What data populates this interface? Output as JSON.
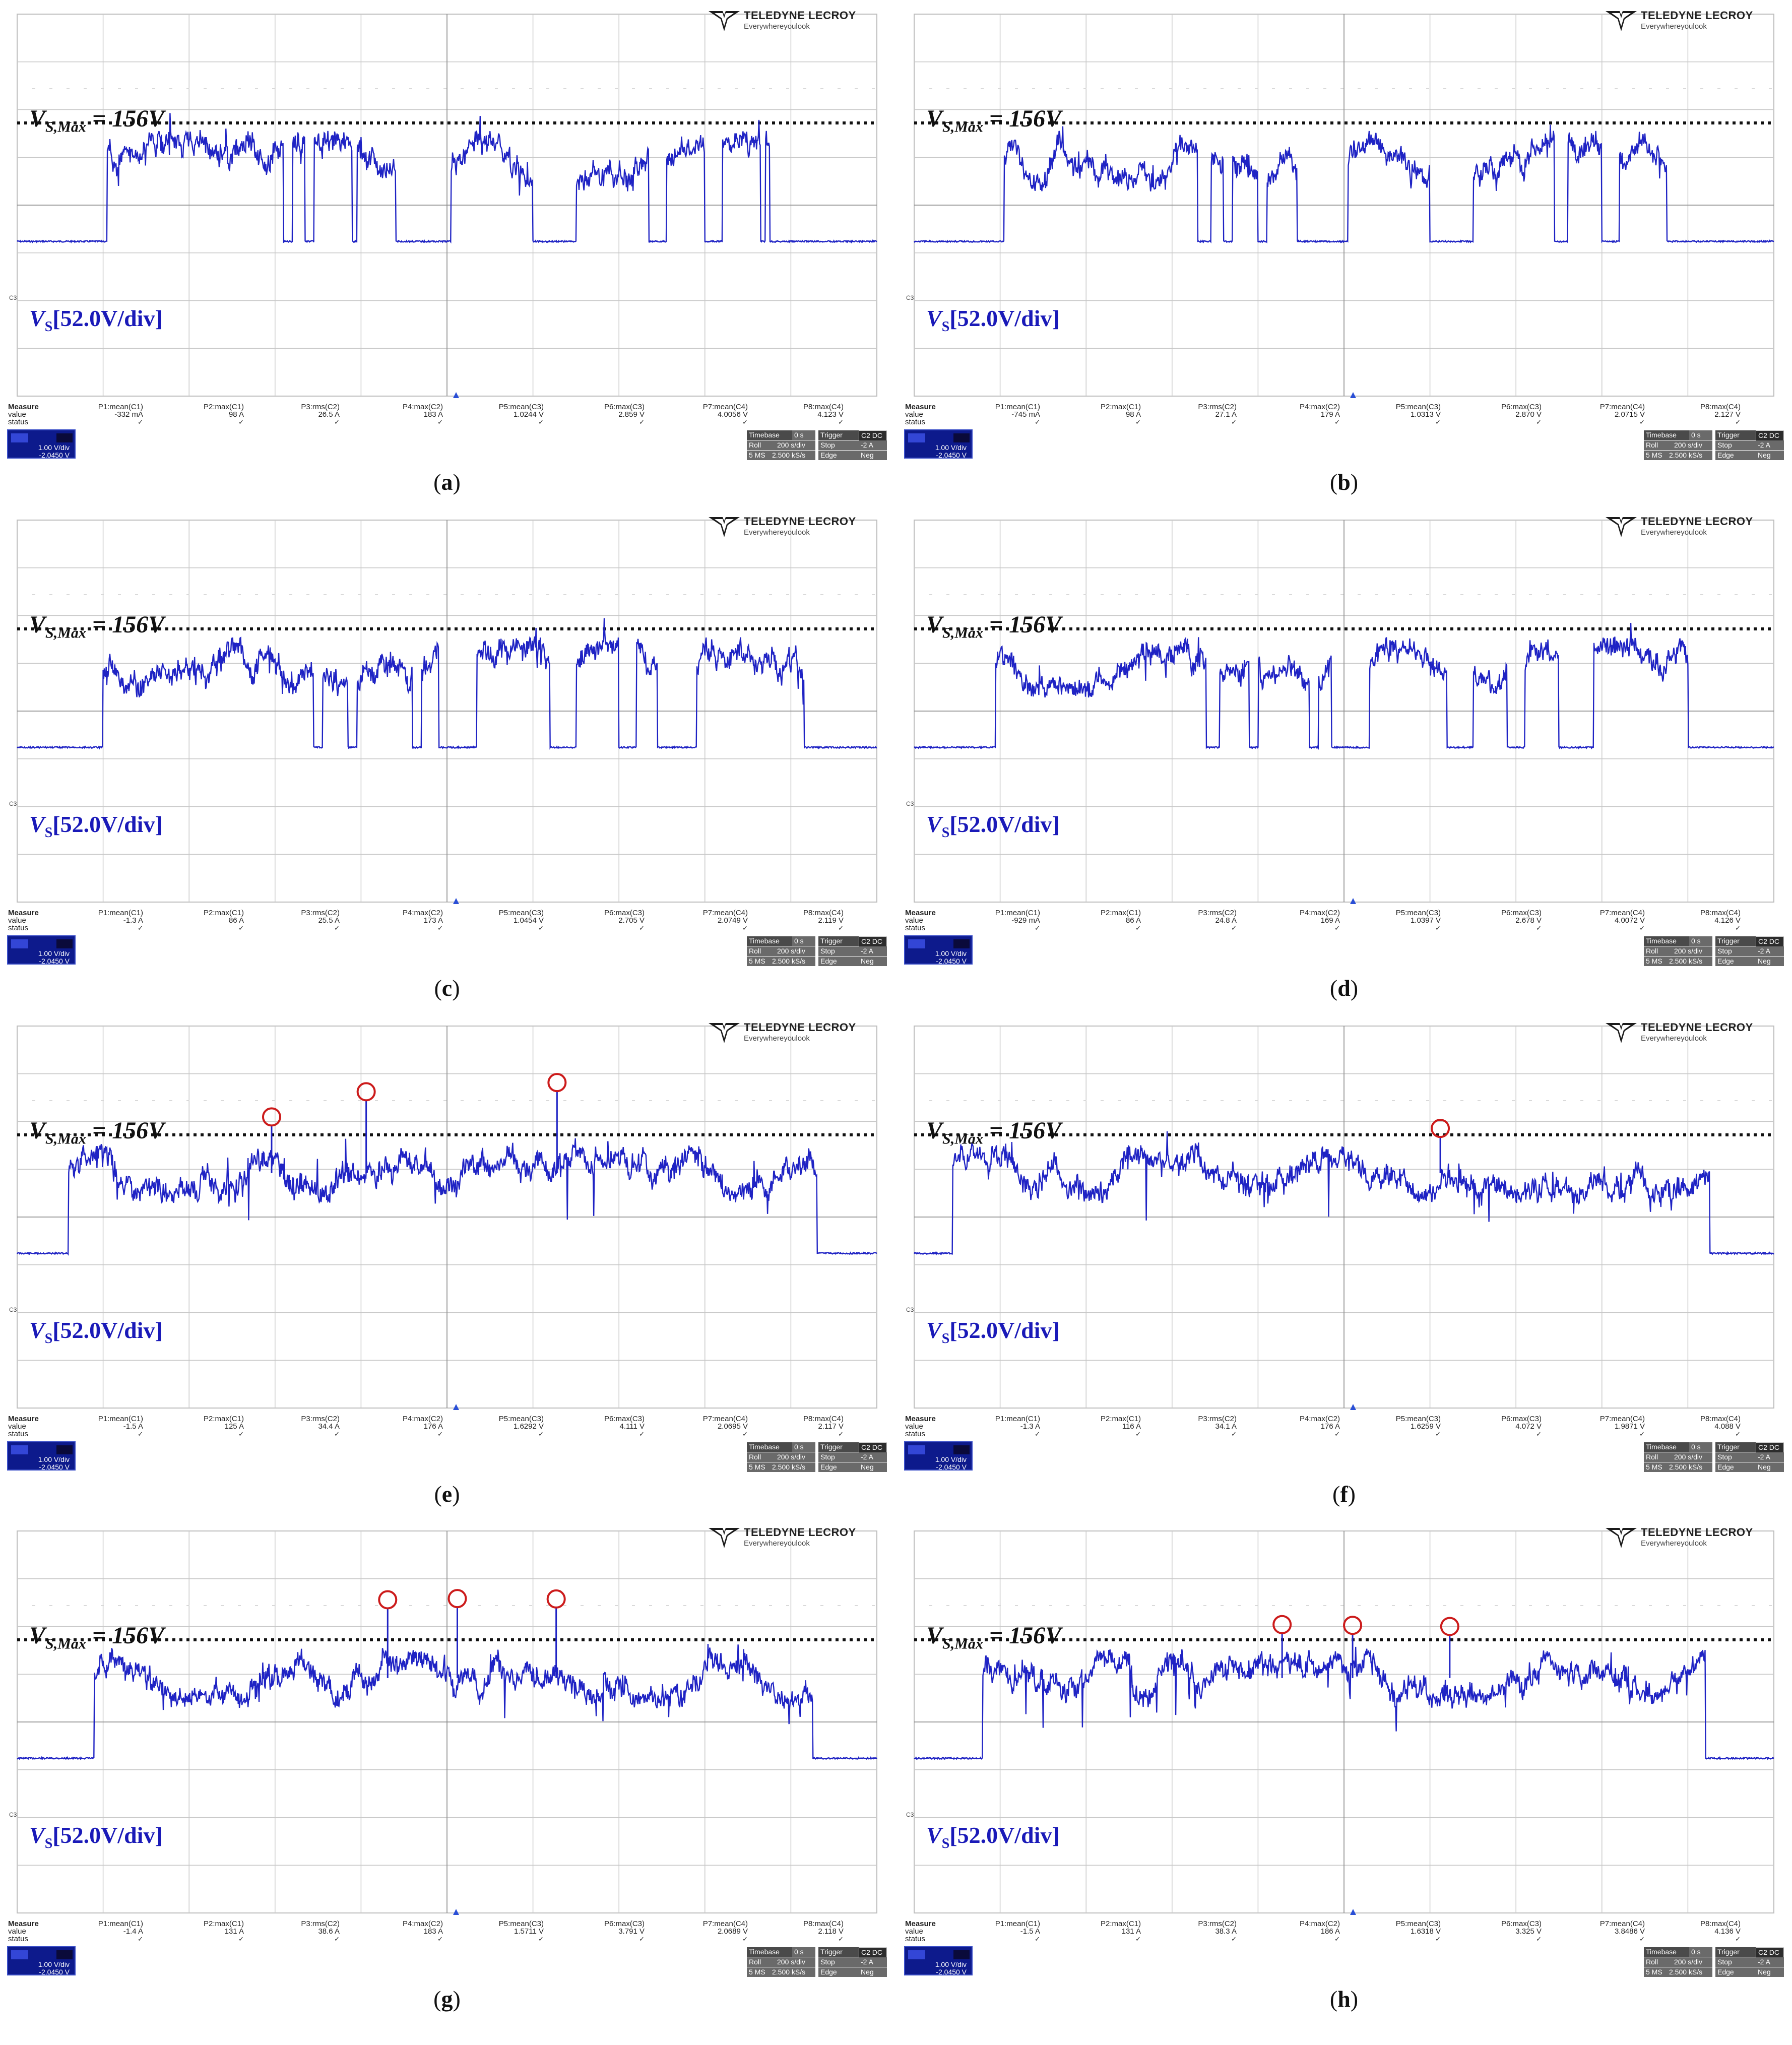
{
  "logo": {
    "brand": "TELEDYNE LECROY",
    "tagline": "Everywhereyoulook"
  },
  "labels": {
    "vsmax_v": "V",
    "vsmax_sub": "S,Max",
    "vsmax_val": " = 156V",
    "vs_v": "V",
    "vs_sub": "S",
    "vs_scale": "[52.0V/div]",
    "c3": "C3"
  },
  "measure_labels": {
    "measure": "Measure",
    "value": "value",
    "status": "status"
  },
  "measure_headers": [
    "P1:mean(C1)",
    "P2:max(C1)",
    "P3:rms(C2)",
    "P4:max(C2)",
    "P5:mean(C3)",
    "P6:max(C3)",
    "P7:mean(C4)",
    "P8:max(C4)"
  ],
  "status_check": "✓",
  "channel_box": {
    "scale": "1.00 V/div",
    "offset": "-2.0450 V"
  },
  "timebase_box": {
    "timebase": "Timebase",
    "tb_val": "0 s",
    "trigger": "Trigger",
    "trig_tag": "C2 DC",
    "roll": "Roll",
    "rate": "200 s/div",
    "stop": "Stop",
    "trig_level": "-2 A",
    "ms": "5 MS",
    "srate": "2.500 kS/s",
    "edge": "Edge",
    "neg": "Neg"
  },
  "colors": {
    "trace": "#1f23c4",
    "limit": "#111111",
    "marker": "#cc1b1b",
    "grid": "#c8c8c8"
  },
  "panels": [
    {
      "caption": "a",
      "values": [
        "-332 mA",
        "98 A",
        "26.5 A",
        "183 A",
        "1.0244 V",
        "2.859 V",
        "4.0056 V",
        "4.123 V"
      ]
    },
    {
      "caption": "b",
      "values": [
        "-745 mA",
        "98 A",
        "27.1 A",
        "179 A",
        "1.0313 V",
        "2.870 V",
        "2.0715 V",
        "2.127 V"
      ]
    },
    {
      "caption": "c",
      "values": [
        "-1.3 A",
        "86 A",
        "25.5 A",
        "173 A",
        "1.0454 V",
        "2.705 V",
        "2.0749 V",
        "2.119 V"
      ]
    },
    {
      "caption": "d",
      "values": [
        "-929 mA",
        "86 A",
        "24.8 A",
        "169 A",
        "1.0397 V",
        "2.678 V",
        "4.0072 V",
        "4.126 V"
      ]
    },
    {
      "caption": "e",
      "values": [
        "-1.5 A",
        "125 A",
        "34.4 A",
        "176 A",
        "1.6292 V",
        "4.111 V",
        "2.0695 V",
        "2.117 V"
      ]
    },
    {
      "caption": "f",
      "values": [
        "-1.3 A",
        "116 A",
        "34.1 A",
        "176 A",
        "1.6259 V",
        "4.072 V",
        "1.9871 V",
        "4.088 V"
      ]
    },
    {
      "caption": "g",
      "values": [
        "-1.4 A",
        "131 A",
        "38.6 A",
        "183 A",
        "1.5711 V",
        "3.791 V",
        "2.0689 V",
        "2.118 V"
      ]
    },
    {
      "caption": "h",
      "values": [
        "-1.5 A",
        "131 A",
        "38.3 A",
        "186 A",
        "1.6318 V",
        "3.325 V",
        "3.8486 V",
        "4.136 V"
      ]
    }
  ]
}
